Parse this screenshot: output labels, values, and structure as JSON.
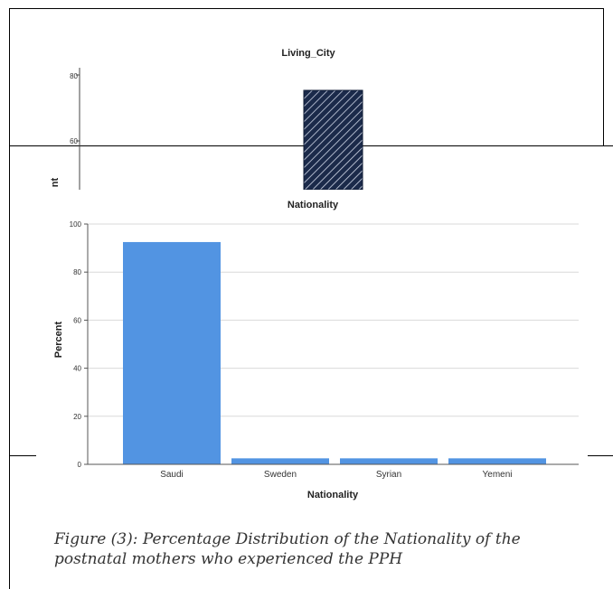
{
  "background_chart": {
    "title": "Living_City",
    "ylabel_fragment": "nt",
    "tick_labels": [
      "80",
      "60"
    ]
  },
  "chart_data": {
    "type": "bar",
    "title": "Nationality",
    "xlabel": "Nationality",
    "ylabel": "Percent",
    "categories": [
      "Saudi",
      "Sweden",
      "Syrian",
      "Yemeni"
    ],
    "values": [
      92.5,
      2.5,
      2.5,
      2.5
    ],
    "ylim": [
      0,
      100
    ],
    "yticks": [
      0,
      20,
      40,
      60,
      80,
      100
    ],
    "grid": true,
    "bar_color": "#5294e2"
  },
  "caption": "Figure (3): Percentage Distribution of the Nationality of the postnatal mothers who experienced the PPH"
}
